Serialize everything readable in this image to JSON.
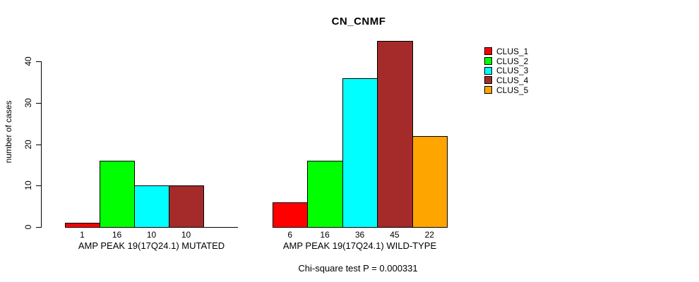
{
  "chart_data": {
    "type": "bar",
    "title": "CN_CNMF",
    "ylabel": "number of cases",
    "ylim": [
      0,
      40
    ],
    "yticks": [
      0,
      10,
      20,
      30,
      40
    ],
    "grid": false,
    "legend_position": "right",
    "legend": [
      {
        "label": "CLUS_1",
        "color": "#ff0000"
      },
      {
        "label": "CLUS_2",
        "color": "#00ff00"
      },
      {
        "label": "CLUS_3",
        "color": "#00ffff"
      },
      {
        "label": "CLUS_4",
        "color": "#a52a2a"
      },
      {
        "label": "CLUS_5",
        "color": "#ffa500"
      }
    ],
    "groups": [
      {
        "label": "AMP PEAK 19(17Q24.1) MUTATED",
        "values": [
          1,
          16,
          10,
          10,
          0
        ],
        "bar_labels": [
          "1",
          "16",
          "10",
          "10",
          null
        ]
      },
      {
        "label": "AMP PEAK 19(17Q24.1) WILD-TYPE",
        "values": [
          6,
          16,
          36,
          45,
          22
        ],
        "bar_labels": [
          "6",
          "16",
          "36",
          "45",
          "22"
        ]
      }
    ],
    "footnote": "Chi-square test P = 0.000331"
  }
}
